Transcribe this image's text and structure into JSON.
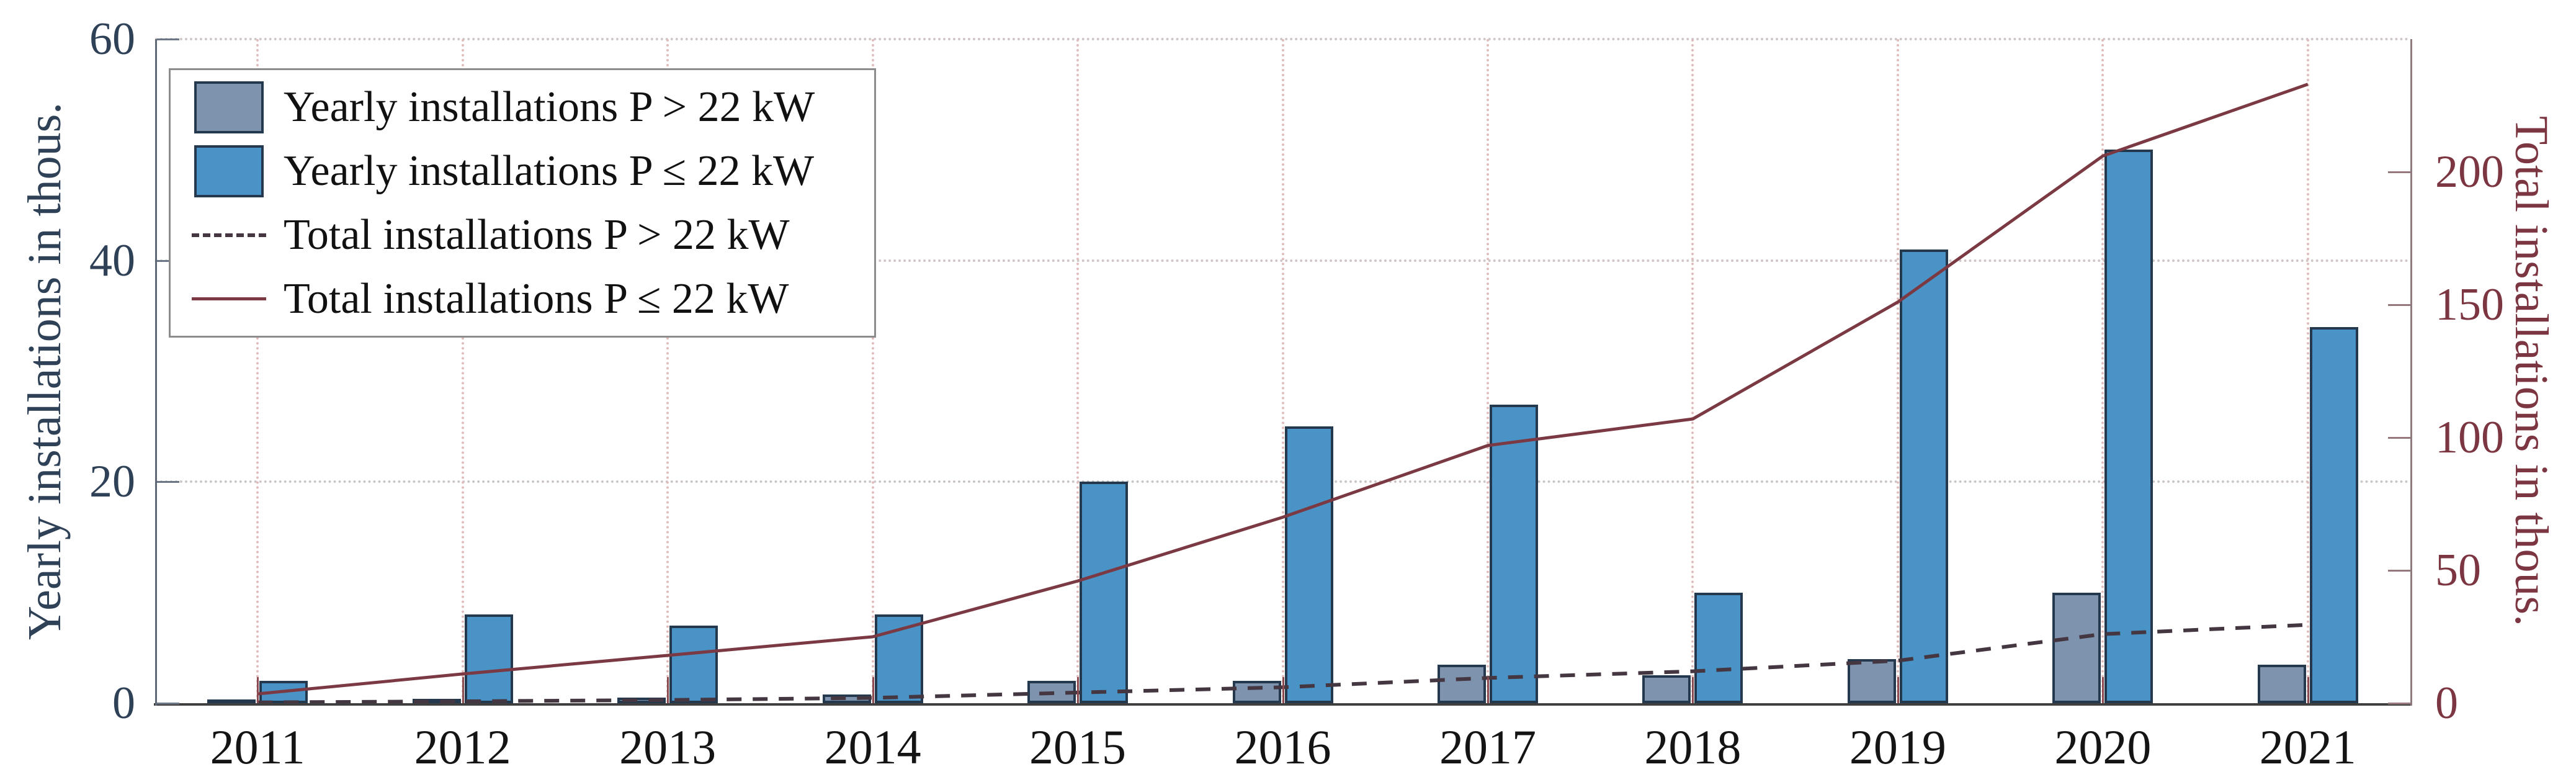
{
  "figure": {
    "left_axis_title": "Yearly installations in thous.",
    "right_axis_title": "Total installations in thous."
  },
  "legend": {
    "position": "top-left",
    "items": [
      {
        "label": "Yearly installations P > 22 kW",
        "sample": "bar-swatch",
        "color": "#7e93ae",
        "border_color": "#24384e"
      },
      {
        "label": "Yearly installations P ≤ 22 kW",
        "sample": "bar-swatch",
        "color": "#4993c6",
        "border_color": "#24384e"
      },
      {
        "label": "Total installations P > 22 kW",
        "sample": "dashed-line",
        "color": "#443741"
      },
      {
        "label": "Total installations P ≤ 22 kW",
        "sample": "solid-line",
        "color": "#7b3a43"
      }
    ]
  },
  "chart_data": {
    "type": "bar",
    "title": "",
    "categories": [
      "2011",
      "2012",
      "2013",
      "2014",
      "2015",
      "2016",
      "2017",
      "2018",
      "2019",
      "2020",
      "2021"
    ],
    "left_axis": {
      "label": "Yearly installations in thous.",
      "ticks": [
        0,
        20,
        40,
        60
      ],
      "range": [
        0,
        60
      ],
      "text_color": "#2e4156"
    },
    "right_axis": {
      "label": "Total installations in thous.",
      "ticks": [
        0,
        50,
        100,
        150,
        200
      ],
      "range": [
        0,
        250
      ],
      "text_color": "#7c3642"
    },
    "grid": true,
    "legend_position": "top-left",
    "series": [
      {
        "name": "Yearly installations P > 22 kW",
        "type": "bar",
        "axis": "left",
        "color": "#7e93ae",
        "values": [
          0.3,
          0.4,
          0.5,
          0.8,
          2.0,
          2.0,
          3.5,
          2.5,
          4.0,
          10.0,
          3.5
        ]
      },
      {
        "name": "Yearly installations P ≤ 22 kW",
        "type": "bar",
        "axis": "left",
        "color": "#4993c6",
        "values": [
          2,
          8,
          7,
          8,
          20,
          25,
          27,
          10,
          41,
          50,
          34
        ]
      },
      {
        "name": "Total installations P > 22 kW",
        "type": "line",
        "line_style": "dashed",
        "axis": "right",
        "color": "#443741",
        "values": [
          0.3,
          0.7,
          1.2,
          2.0,
          4.0,
          6.0,
          9.5,
          12.0,
          16.0,
          26.0,
          29.5
        ]
      },
      {
        "name": "Total installations P ≤ 22 kW",
        "type": "line",
        "line_style": "solid",
        "axis": "right",
        "color": "#7b3a43",
        "values": [
          3.5,
          11,
          18,
          25,
          46,
          70,
          97,
          107,
          151,
          206,
          233
        ]
      }
    ]
  }
}
